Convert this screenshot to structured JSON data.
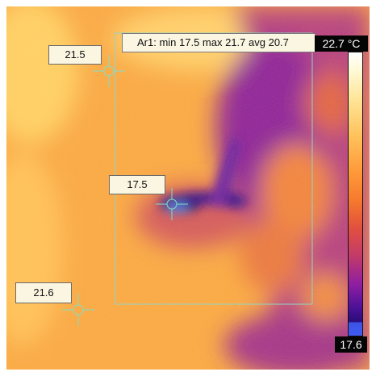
{
  "spots": [
    {
      "label": "21.5"
    },
    {
      "label": "17.5"
    },
    {
      "label": "21.6"
    }
  ],
  "roi": {
    "name": "Ar1",
    "summary": "Ar1: min 17.5 max 21.7 avg 20.7"
  },
  "scale": {
    "max_label": "22.7 °C",
    "min_label": "17.6",
    "max_value": 22.7,
    "min_value": 17.6,
    "palette": "iron"
  },
  "colors": {
    "marker": "#7fe0c8",
    "roi_outline": "#8fd6c8"
  }
}
